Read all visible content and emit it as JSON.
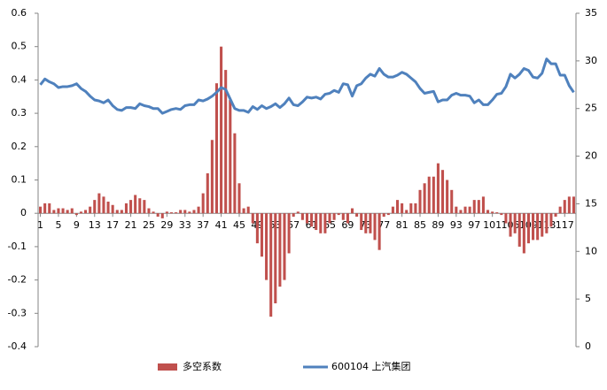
{
  "chart_data": {
    "type": "bar",
    "categories": [
      1,
      null,
      null,
      null,
      5,
      null,
      null,
      null,
      9,
      null,
      null,
      null,
      13,
      null,
      null,
      null,
      17,
      null,
      null,
      null,
      21,
      null,
      null,
      null,
      25,
      null,
      null,
      null,
      29,
      null,
      null,
      null,
      33,
      null,
      null,
      null,
      37,
      null,
      null,
      null,
      41,
      null,
      null,
      null,
      45,
      null,
      null,
      null,
      49,
      null,
      null,
      null,
      53,
      null,
      null,
      null,
      57,
      null,
      null,
      null,
      61,
      null,
      null,
      null,
      65,
      null,
      null,
      null,
      69,
      null,
      null,
      null,
      73,
      null,
      null,
      null,
      77,
      null,
      null,
      null,
      81,
      null,
      null,
      null,
      85,
      null,
      null,
      null,
      89,
      null,
      null,
      null,
      93,
      null,
      null,
      null,
      97,
      null,
      null,
      null,
      101,
      null,
      null,
      null,
      105,
      null,
      null,
      null,
      109,
      null,
      null,
      null,
      113,
      null,
      null,
      null,
      117,
      null,
      null
    ],
    "series": [
      {
        "name": "多空系数",
        "type": "bar",
        "color": "#c0504d",
        "values": [
          0.02,
          0.03,
          0.03,
          0.01,
          0.015,
          0.015,
          0.01,
          0.015,
          -0.005,
          0.005,
          0.01,
          0.02,
          0.04,
          0.06,
          0.05,
          0.035,
          0.025,
          0.01,
          0.01,
          0.03,
          0.04,
          0.055,
          0.045,
          0.04,
          0.015,
          0.005,
          -0.01,
          -0.015,
          0.005,
          0.003,
          0.003,
          0.01,
          0.01,
          0.005,
          0.01,
          0.02,
          0.06,
          0.12,
          0.22,
          0.39,
          0.5,
          0.43,
          0.34,
          0.24,
          0.09,
          0.015,
          0.02,
          -0.03,
          -0.09,
          -0.13,
          -0.2,
          -0.31,
          -0.27,
          -0.22,
          -0.2,
          -0.12,
          -0.01,
          0.005,
          -0.02,
          -0.03,
          -0.04,
          -0.05,
          -0.06,
          -0.06,
          -0.03,
          -0.02,
          -0.005,
          -0.02,
          -0.03,
          0.015,
          -0.01,
          -0.05,
          -0.06,
          -0.06,
          -0.08,
          -0.11,
          -0.01,
          -0.005,
          0.02,
          0.04,
          0.03,
          0.01,
          0.03,
          0.03,
          0.07,
          0.09,
          0.11,
          0.11,
          0.15,
          0.13,
          0.1,
          0.07,
          0.02,
          0.01,
          0.02,
          0.02,
          0.04,
          0.04,
          0.05,
          0.01,
          0.005,
          0.003,
          -0.005,
          -0.03,
          -0.07,
          -0.06,
          -0.1,
          -0.12,
          -0.09,
          -0.08,
          -0.08,
          -0.07,
          -0.06,
          -0.04,
          -0.01,
          0.02,
          0.04,
          0.05,
          0.05
        ]
      },
      {
        "name": "600104 上汽集团",
        "type": "line",
        "axis": "y2",
        "color": "#4f81bd",
        "values": [
          27.5,
          28.1,
          27.8,
          27.6,
          27.2,
          27.3,
          27.3,
          27.4,
          27.6,
          27.1,
          26.8,
          26.3,
          25.9,
          25.8,
          25.6,
          25.9,
          25.3,
          24.9,
          24.8,
          25.1,
          25.1,
          25.0,
          25.5,
          25.3,
          25.2,
          25.0,
          25.0,
          24.5,
          24.7,
          24.9,
          25.0,
          24.9,
          25.3,
          25.4,
          25.4,
          25.9,
          25.8,
          26.0,
          26.3,
          26.7,
          27.2,
          27.0,
          26.0,
          25.0,
          24.8,
          24.8,
          24.6,
          25.2,
          24.9,
          25.3,
          25.0,
          25.2,
          25.5,
          25.1,
          25.5,
          26.1,
          25.4,
          25.3,
          25.7,
          26.2,
          26.1,
          26.2,
          26.0,
          26.5,
          26.6,
          26.9,
          26.7,
          27.6,
          27.5,
          26.3,
          27.4,
          27.6,
          28.2,
          28.6,
          28.4,
          29.2,
          28.6,
          28.3,
          28.3,
          28.5,
          28.8,
          28.6,
          28.2,
          27.8,
          27.1,
          26.6,
          26.7,
          26.8,
          25.7,
          25.9,
          25.9,
          26.4,
          26.6,
          26.4,
          26.4,
          26.3,
          25.6,
          25.9,
          25.4,
          25.4,
          25.9,
          26.5,
          26.6,
          27.3,
          28.6,
          28.2,
          28.6,
          29.2,
          29.0,
          28.3,
          28.2,
          28.7,
          30.2,
          29.7,
          29.7,
          28.5,
          28.5,
          27.4,
          26.7
        ]
      }
    ],
    "ylim": [
      -0.4,
      0.6
    ],
    "yticks": [
      -0.4,
      -0.3,
      -0.2,
      -0.1,
      0,
      0.1,
      0.2,
      0.3,
      0.4,
      0.5,
      0.6
    ],
    "y2lim": [
      0,
      35
    ],
    "y2ticks": [
      0,
      5,
      10,
      15,
      20,
      25,
      30,
      35
    ],
    "legend": "bottom"
  }
}
